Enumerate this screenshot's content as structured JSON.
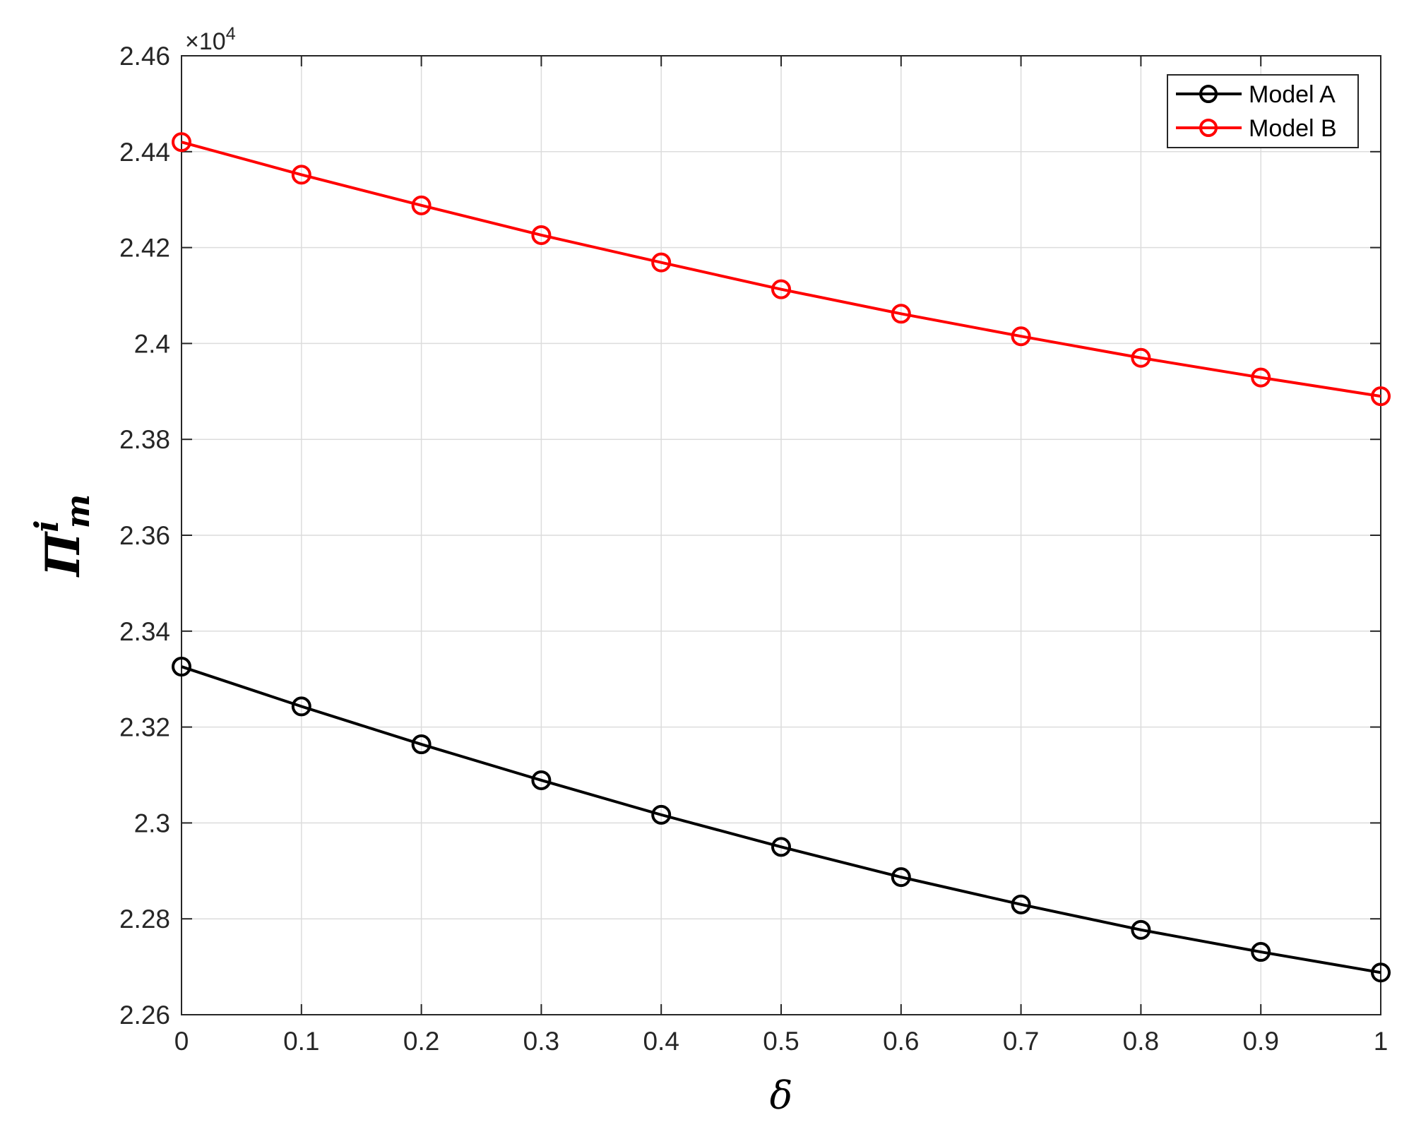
{
  "chart_data": {
    "type": "line",
    "title": "",
    "xlabel": "δ",
    "ylabel": {
      "main": "Π",
      "superscript": "i",
      "subscript": "m"
    },
    "y_exponent_label": {
      "prefix": "×10",
      "power": "4"
    },
    "xlim": [
      0,
      1
    ],
    "ylim": [
      22600,
      24600
    ],
    "x_ticks": [
      0,
      0.1,
      0.2,
      0.3,
      0.4,
      0.5,
      0.6,
      0.7,
      0.8,
      0.9,
      1
    ],
    "x_tick_labels": [
      "0",
      "0.1",
      "0.2",
      "0.3",
      "0.4",
      "0.5",
      "0.6",
      "0.7",
      "0.8",
      "0.9",
      "1"
    ],
    "y_ticks": [
      22600,
      22800,
      23000,
      23200,
      23400,
      23600,
      23800,
      24000,
      24200,
      24400,
      24600
    ],
    "y_tick_labels": [
      "2.26",
      "2.28",
      "2.3",
      "2.32",
      "2.34",
      "2.36",
      "2.38",
      "2.4",
      "2.42",
      "2.44",
      "2.46"
    ],
    "grid": true,
    "legend_position": "top-right",
    "x": [
      0,
      0.1,
      0.2,
      0.3,
      0.4,
      0.5,
      0.6,
      0.7,
      0.8,
      0.9,
      1
    ],
    "series": [
      {
        "name": "Model A",
        "color": "#000000",
        "marker": "circle-open",
        "values": [
          23326,
          23243,
          23164,
          23089,
          23017,
          22950,
          22887,
          22830,
          22777,
          22731,
          22688
        ]
      },
      {
        "name": "Model B",
        "color": "#ff0000",
        "marker": "circle-open",
        "values": [
          24420,
          24352,
          24288,
          24226,
          24169,
          24113,
          24062,
          24015,
          23970,
          23929,
          23890
        ]
      }
    ]
  }
}
